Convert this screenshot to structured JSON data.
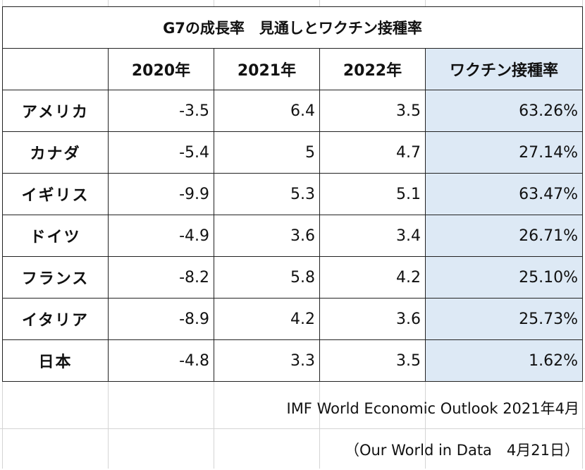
{
  "table": {
    "title": "G7の成長率　見通しとワクチン接種率",
    "headers": [
      "",
      "2020年",
      "2021年",
      "2022年",
      "ワクチン接種率"
    ],
    "rows": [
      {
        "country": "アメリカ",
        "y2020": "-3.5",
        "y2021": "6.4",
        "y2022": "3.5",
        "vaccination": "63.26%"
      },
      {
        "country": "カナダ",
        "y2020": "-5.4",
        "y2021": "5",
        "y2022": "4.7",
        "vaccination": "27.14%"
      },
      {
        "country": "イギリス",
        "y2020": "-9.9",
        "y2021": "5.3",
        "y2022": "5.1",
        "vaccination": "63.47%"
      },
      {
        "country": "ドイツ",
        "y2020": "-4.9",
        "y2021": "3.6",
        "y2022": "3.4",
        "vaccination": "26.71%"
      },
      {
        "country": "フランス",
        "y2020": "-8.2",
        "y2021": "5.8",
        "y2022": "4.2",
        "vaccination": "25.10%"
      },
      {
        "country": "イタリア",
        "y2020": "-8.9",
        "y2021": "4.2",
        "y2022": "3.6",
        "vaccination": "25.73%"
      },
      {
        "country": "日本",
        "y2020": "-4.8",
        "y2021": "3.3",
        "y2022": "3.5",
        "vaccination": "1.62%"
      }
    ]
  },
  "sources": {
    "imf": "IMF World Economic Outlook 2021年4月",
    "owid": "（Our World in Data　4月21日）"
  },
  "colors": {
    "vaccination_column_fill": "#dde9f5",
    "border": "#222222",
    "sheet_gridline": "#d4d4d4"
  }
}
